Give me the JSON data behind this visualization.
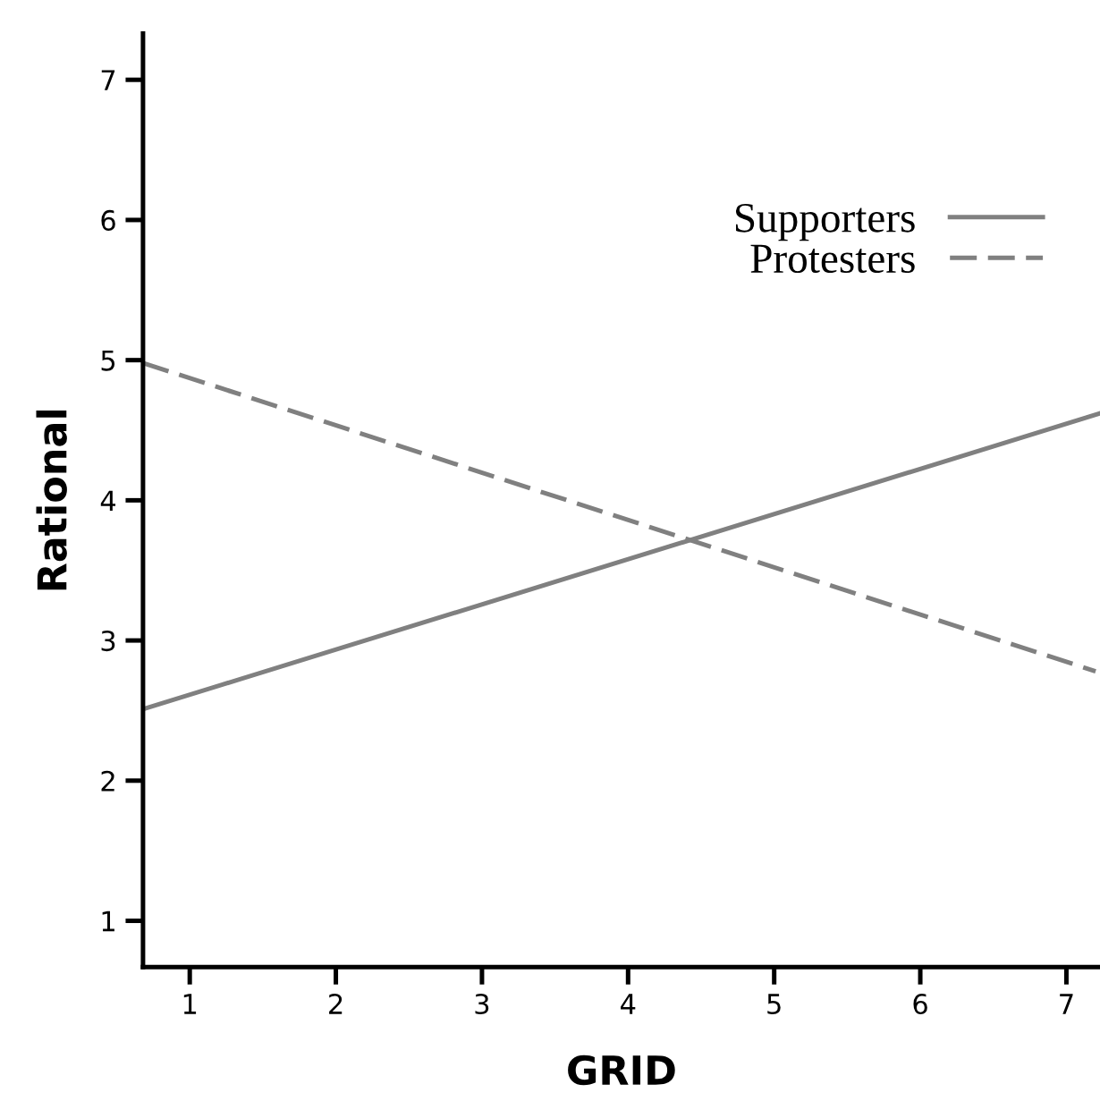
{
  "chart_data": {
    "type": "line",
    "xlabel": "GRID",
    "ylabel": "Rational",
    "xlim": [
      0.68,
      7.23
    ],
    "ylim": [
      0.67,
      7.33
    ],
    "xticks": [
      1,
      2,
      3,
      4,
      5,
      6,
      7
    ],
    "yticks": [
      1,
      2,
      3,
      4,
      5,
      6,
      7
    ],
    "grid": false,
    "legend": "top right",
    "marker": "none",
    "series": [
      {
        "name": "Supporters",
        "color": "#808080",
        "x": [
          0.68,
          7.23
        ],
        "values": [
          2.51,
          4.62
        ],
        "line_style": "solid"
      },
      {
        "name": "Protesters",
        "color": "#808080",
        "x": [
          0.68,
          7.2
        ],
        "values": [
          4.98,
          2.78
        ],
        "line_style": "dashed"
      }
    ]
  }
}
